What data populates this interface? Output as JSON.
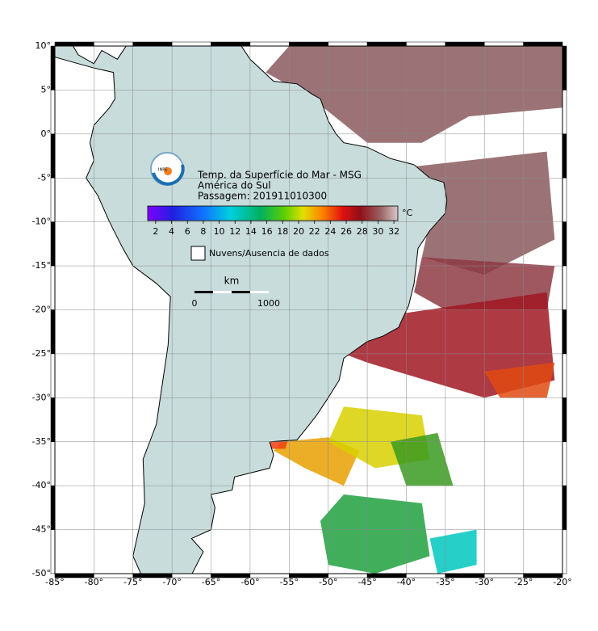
{
  "title": "Temp. da Superfície do Mar - MSG",
  "region": "América do Sul",
  "pass": "Passagem: 201911010300",
  "logo_text": "INPE",
  "colorbar": {
    "unit": "°C",
    "range": [
      1,
      32.5
    ],
    "ticks": [
      2,
      4,
      6,
      8,
      10,
      12,
      14,
      16,
      18,
      20,
      22,
      24,
      26,
      28,
      30,
      32
    ]
  },
  "legend": "Nuvens/Ausencia de dados",
  "scale_bar": {
    "unit": "km",
    "labels": [
      "0",
      "1000"
    ]
  },
  "map": {
    "xlim": [
      -85,
      -20
    ],
    "ylim": [
      -50,
      10
    ],
    "xticks": [
      {
        "value": -85,
        "label": "-85°"
      },
      {
        "value": -80,
        "label": "-80°"
      },
      {
        "value": -75,
        "label": "-75°"
      },
      {
        "value": -70,
        "label": "-70°"
      },
      {
        "value": -65,
        "label": "-65°"
      },
      {
        "value": -60,
        "label": "-60°"
      },
      {
        "value": -55,
        "label": "-55°"
      },
      {
        "value": -50,
        "label": "-50°"
      },
      {
        "value": -45,
        "label": "-45°"
      },
      {
        "value": -40,
        "label": "-40°"
      },
      {
        "value": -35,
        "label": "-35°"
      },
      {
        "value": -30,
        "label": "-30°"
      },
      {
        "value": -25,
        "label": "-25°"
      },
      {
        "value": -20,
        "label": "-20°"
      }
    ],
    "yticks": [
      {
        "value": 10,
        "label": "10°"
      },
      {
        "value": 5,
        "label": "5°"
      },
      {
        "value": 0,
        "label": "0°"
      },
      {
        "value": -5,
        "label": "-5°"
      },
      {
        "value": -10,
        "label": "-10°"
      },
      {
        "value": -15,
        "label": "-15°"
      },
      {
        "value": -20,
        "label": "-20°"
      },
      {
        "value": -25,
        "label": "-25°"
      },
      {
        "value": -30,
        "label": "-30°"
      },
      {
        "value": -35,
        "label": "-35°"
      },
      {
        "value": -40,
        "label": "-40°"
      },
      {
        "value": -45,
        "label": "-45°"
      },
      {
        "value": -50,
        "label": "-50°"
      }
    ]
  }
}
